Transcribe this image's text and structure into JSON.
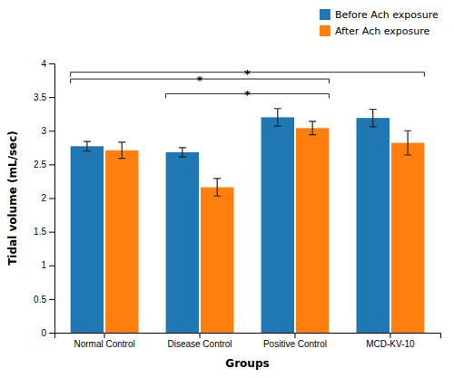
{
  "chart_data": {
    "type": "bar",
    "xlabel": "Groups",
    "ylabel": "Tidal volume (mL/sec)",
    "categories": [
      "Normal Control",
      "Disease Control",
      "Positive Control",
      "MCD-KV-10"
    ],
    "series": [
      {
        "name": "Before Ach exposure",
        "values": [
          2.77,
          2.68,
          3.2,
          3.19
        ],
        "errors": [
          0.07,
          0.07,
          0.13,
          0.13
        ]
      },
      {
        "name": "After Ach exposure",
        "values": [
          2.71,
          2.16,
          3.04,
          2.82
        ],
        "errors": [
          0.12,
          0.13,
          0.1,
          0.18
        ]
      }
    ],
    "ylim": [
      0,
      4.0
    ],
    "yticks": [
      0,
      0.5,
      1,
      1.5,
      2,
      2.5,
      3,
      3.5,
      4
    ],
    "grid": false,
    "legend": "upper right",
    "annotations": [
      {
        "text": "*",
        "from": "Normal Control",
        "to": "Positive Control",
        "y": 3.77
      },
      {
        "text": "*",
        "from": "Normal Control",
        "to": "MCD-KV-10",
        "y": 3.87
      },
      {
        "text": "*",
        "from": "Disease Control",
        "to": "Positive Control",
        "y": 3.55
      }
    ]
  }
}
